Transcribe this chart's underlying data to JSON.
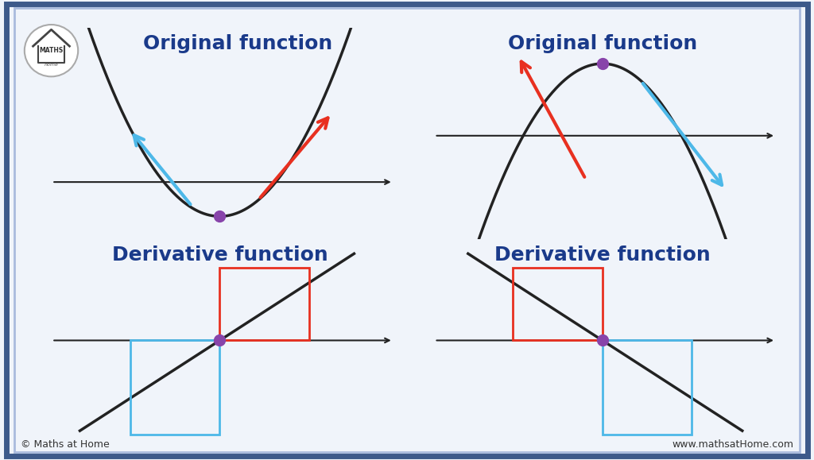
{
  "bg_color": "#f0f4fa",
  "border_color_outer": "#3d5a8a",
  "border_color_inner": "#aabbdd",
  "title_color": "#1a3a8a",
  "title1": "Original function",
  "title2": "Original function",
  "title3": "Derivative function",
  "title4": "Derivative function",
  "title_fontsize": 18,
  "dot_color": "#8844aa",
  "arrow_blue": "#4db8e8",
  "arrow_red": "#e83020",
  "box_red": "#e83020",
  "box_blue": "#4db8e8",
  "curve_color": "#222222",
  "axis_color": "#222222",
  "footer_left": "© Maths at Home",
  "footer_right": "www.mathsatHome.com"
}
